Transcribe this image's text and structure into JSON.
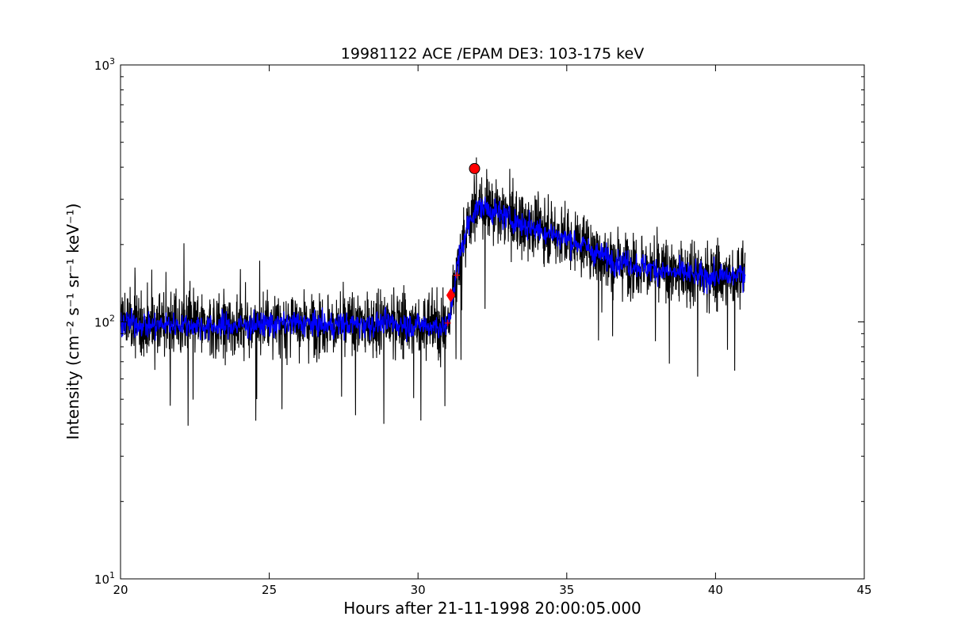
{
  "chart_data": {
    "type": "line",
    "title": "19981122 ACE /EPAM DE3: 103-175 keV",
    "xlabel": "Hours after 21-11-1998 20:00:05.000",
    "ylabel": "Intensity (cm⁻² s⁻¹ sr⁻¹ keV⁻¹)",
    "xlim": [
      20,
      45
    ],
    "ylim": [
      10,
      1000
    ],
    "yscale": "log",
    "grid": false,
    "xticks": [
      20,
      25,
      30,
      35,
      40,
      45
    ],
    "xtick_labels": [
      "20",
      "25",
      "30",
      "35",
      "40",
      "45"
    ],
    "yticks": [
      10,
      100,
      1000
    ],
    "ytick_labels": [
      {
        "base": "10",
        "exp": "1"
      },
      {
        "base": "10",
        "exp": "2"
      },
      {
        "base": "10",
        "exp": "3"
      }
    ],
    "series": [
      {
        "role": "raw",
        "color": "#000000",
        "x": [
          20.0,
          21.0,
          22.0,
          23.0,
          24.0,
          25.0,
          26.0,
          27.0,
          28.0,
          29.0,
          30.0,
          31.0,
          31.1,
          31.2,
          31.3,
          31.5,
          31.7,
          31.9,
          32.2,
          32.5,
          33.0,
          33.5,
          34.0,
          34.5,
          35.0,
          35.5,
          36.0,
          36.5,
          37.0,
          37.5,
          38.0,
          38.5,
          39.0,
          39.5,
          40.0,
          40.5,
          41.0
        ],
        "y": [
          100,
          97,
          98,
          96,
          97,
          98,
          99,
          97,
          98,
          99,
          97,
          96,
          110,
          135,
          160,
          200,
          240,
          275,
          280,
          270,
          255,
          240,
          230,
          220,
          210,
          200,
          185,
          175,
          170,
          165,
          160,
          155,
          155,
          150,
          150,
          150,
          155
        ]
      },
      {
        "role": "smoothed",
        "color": "#0000ff",
        "x": [
          20.0,
          21.0,
          22.0,
          23.0,
          24.0,
          25.0,
          26.0,
          27.0,
          28.0,
          29.0,
          30.0,
          31.0,
          31.1,
          31.2,
          31.3,
          31.5,
          31.7,
          31.9,
          32.2,
          32.5,
          33.0,
          33.5,
          34.0,
          34.5,
          35.0,
          35.5,
          36.0,
          36.5,
          37.0,
          37.5,
          38.0,
          38.5,
          39.0,
          39.5,
          40.0,
          40.5,
          41.0
        ],
        "y": [
          100,
          97,
          98,
          96,
          97,
          98,
          99,
          97,
          98,
          99,
          97,
          96,
          110,
          135,
          160,
          200,
          240,
          275,
          280,
          270,
          255,
          240,
          230,
          220,
          210,
          200,
          185,
          175,
          170,
          165,
          160,
          155,
          155,
          150,
          150,
          150,
          155
        ]
      }
    ],
    "markers": [
      {
        "shape": "diamond",
        "x": 31.1,
        "y": 127,
        "color": "#ff0000"
      },
      {
        "shape": "circle",
        "x": 31.9,
        "y": 395,
        "color": "#ff0000"
      },
      {
        "shape": "plus",
        "x": 31.0,
        "y": 99,
        "color": "#ff0000"
      },
      {
        "shape": "plus",
        "x": 31.3,
        "y": 152,
        "color": "#ff0000"
      }
    ],
    "x_range": [
      20.0,
      41.0
    ]
  }
}
